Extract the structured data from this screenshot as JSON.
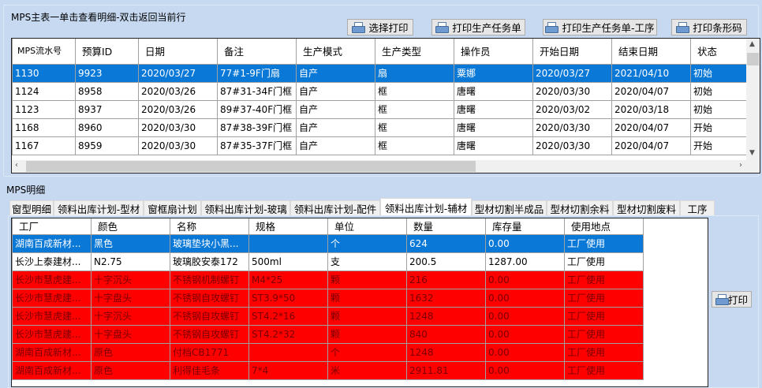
{
  "master": {
    "title": "MPS主表一单击查看明细-双击返回当前行",
    "buttons": [
      "选择打印",
      "打印生产任务单",
      "打印生产任务单-工序",
      "打印条形码"
    ],
    "columns": [
      "MPS流水号",
      "预算ID",
      "日期",
      "备注",
      "生产模式",
      "生产类型",
      "操作员",
      "开始日期",
      "结束日期",
      "状态"
    ],
    "rows": [
      [
        "1130",
        "9923",
        "2020/03/27",
        "77#1-9F门扇",
        "自产",
        "扇",
        "粟娜",
        "2020/03/27",
        "2021/04/10",
        "初始"
      ],
      [
        "1124",
        "8958",
        "2020/03/26",
        "87#31-34F门框",
        "自产",
        "框",
        "唐曙",
        "2020/03/30",
        "2020/04/07",
        "初始"
      ],
      [
        "1123",
        "8937",
        "2020/03/26",
        "89#37-40F门框",
        "自产",
        "框",
        "唐曙",
        "2020/03/02",
        "2020/03/18",
        "初始"
      ],
      [
        "1168",
        "8960",
        "2020/03/30",
        "87#38-39F门框",
        "自产",
        "框",
        "唐曙",
        "2020/03/30",
        "2020/04/07",
        "开始"
      ],
      [
        "1167",
        "8959",
        "2020/03/30",
        "87#35-37F门框",
        "自产",
        "框",
        "唐曙",
        "2020/03/30",
        "2020/04/07",
        "开始"
      ]
    ],
    "selected_row": 0
  },
  "detail": {
    "title": "MPS明细",
    "tabs": [
      "窗型明细",
      "领料出库计划-型材",
      "窗框扇计划",
      "领料出库计划-玻璃",
      "领料出库计划-配件",
      "领料出库计划-辅材",
      "型材切割半成品",
      "型材切割余料",
      "型材切割废料",
      "工序"
    ],
    "active_tab": 5,
    "columns": [
      "工厂",
      "颜色",
      "名称",
      "规格",
      "单位",
      "数量",
      "库存量",
      "使用地点"
    ],
    "rows": [
      {
        "state": "selected",
        "cells": [
          "湖南百成新材...",
          "黑色",
          "玻璃垫块小黑...",
          "",
          "个",
          "624",
          "0.00",
          "工厂使用"
        ]
      },
      {
        "state": "normal",
        "cells": [
          "长沙上泰建材...",
          "N2.75",
          "玻璃胶安泰172",
          "500ml",
          "支",
          "200.5",
          "1287.00",
          "工厂使用"
        ]
      },
      {
        "state": "shortage",
        "cells": [
          "长沙市慧虎建...",
          "十字沉头",
          "不锈钢机制螺钉",
          "M4*25",
          "颗",
          "216",
          "0.00",
          "工厂使用"
        ]
      },
      {
        "state": "shortage",
        "cells": [
          "长沙市慧虎建...",
          "十字盘头",
          "不锈钢自攻螺钉",
          "ST3.9*50",
          "颗",
          "1632",
          "0.00",
          "工厂使用"
        ]
      },
      {
        "state": "shortage",
        "cells": [
          "长沙市慧虎建...",
          "十字沉头",
          "不锈钢自攻螺钉",
          "ST4.2*16",
          "颗",
          "1248",
          "0.00",
          "工厂使用"
        ]
      },
      {
        "state": "shortage",
        "cells": [
          "长沙市慧虎建...",
          "十字盘头",
          "不锈钢自攻螺钉",
          "ST4.2*32",
          "颗",
          "840",
          "0.00",
          "工厂使用"
        ]
      },
      {
        "state": "shortage",
        "cells": [
          "湖南百成新材...",
          "原色",
          "付档CB1771",
          "",
          "个",
          "1248",
          "0.00",
          "工厂使用"
        ]
      },
      {
        "state": "shortage",
        "cells": [
          "湖南百成新材...",
          "原色",
          "利得佳毛条",
          "7*4",
          "米",
          "2911.81",
          "0.00",
          "工厂使用"
        ]
      }
    ],
    "print_label": "打印"
  },
  "colors": {
    "background": "#c6d9f1",
    "selected": "#0a78d7",
    "shortage": "#ff0000"
  }
}
